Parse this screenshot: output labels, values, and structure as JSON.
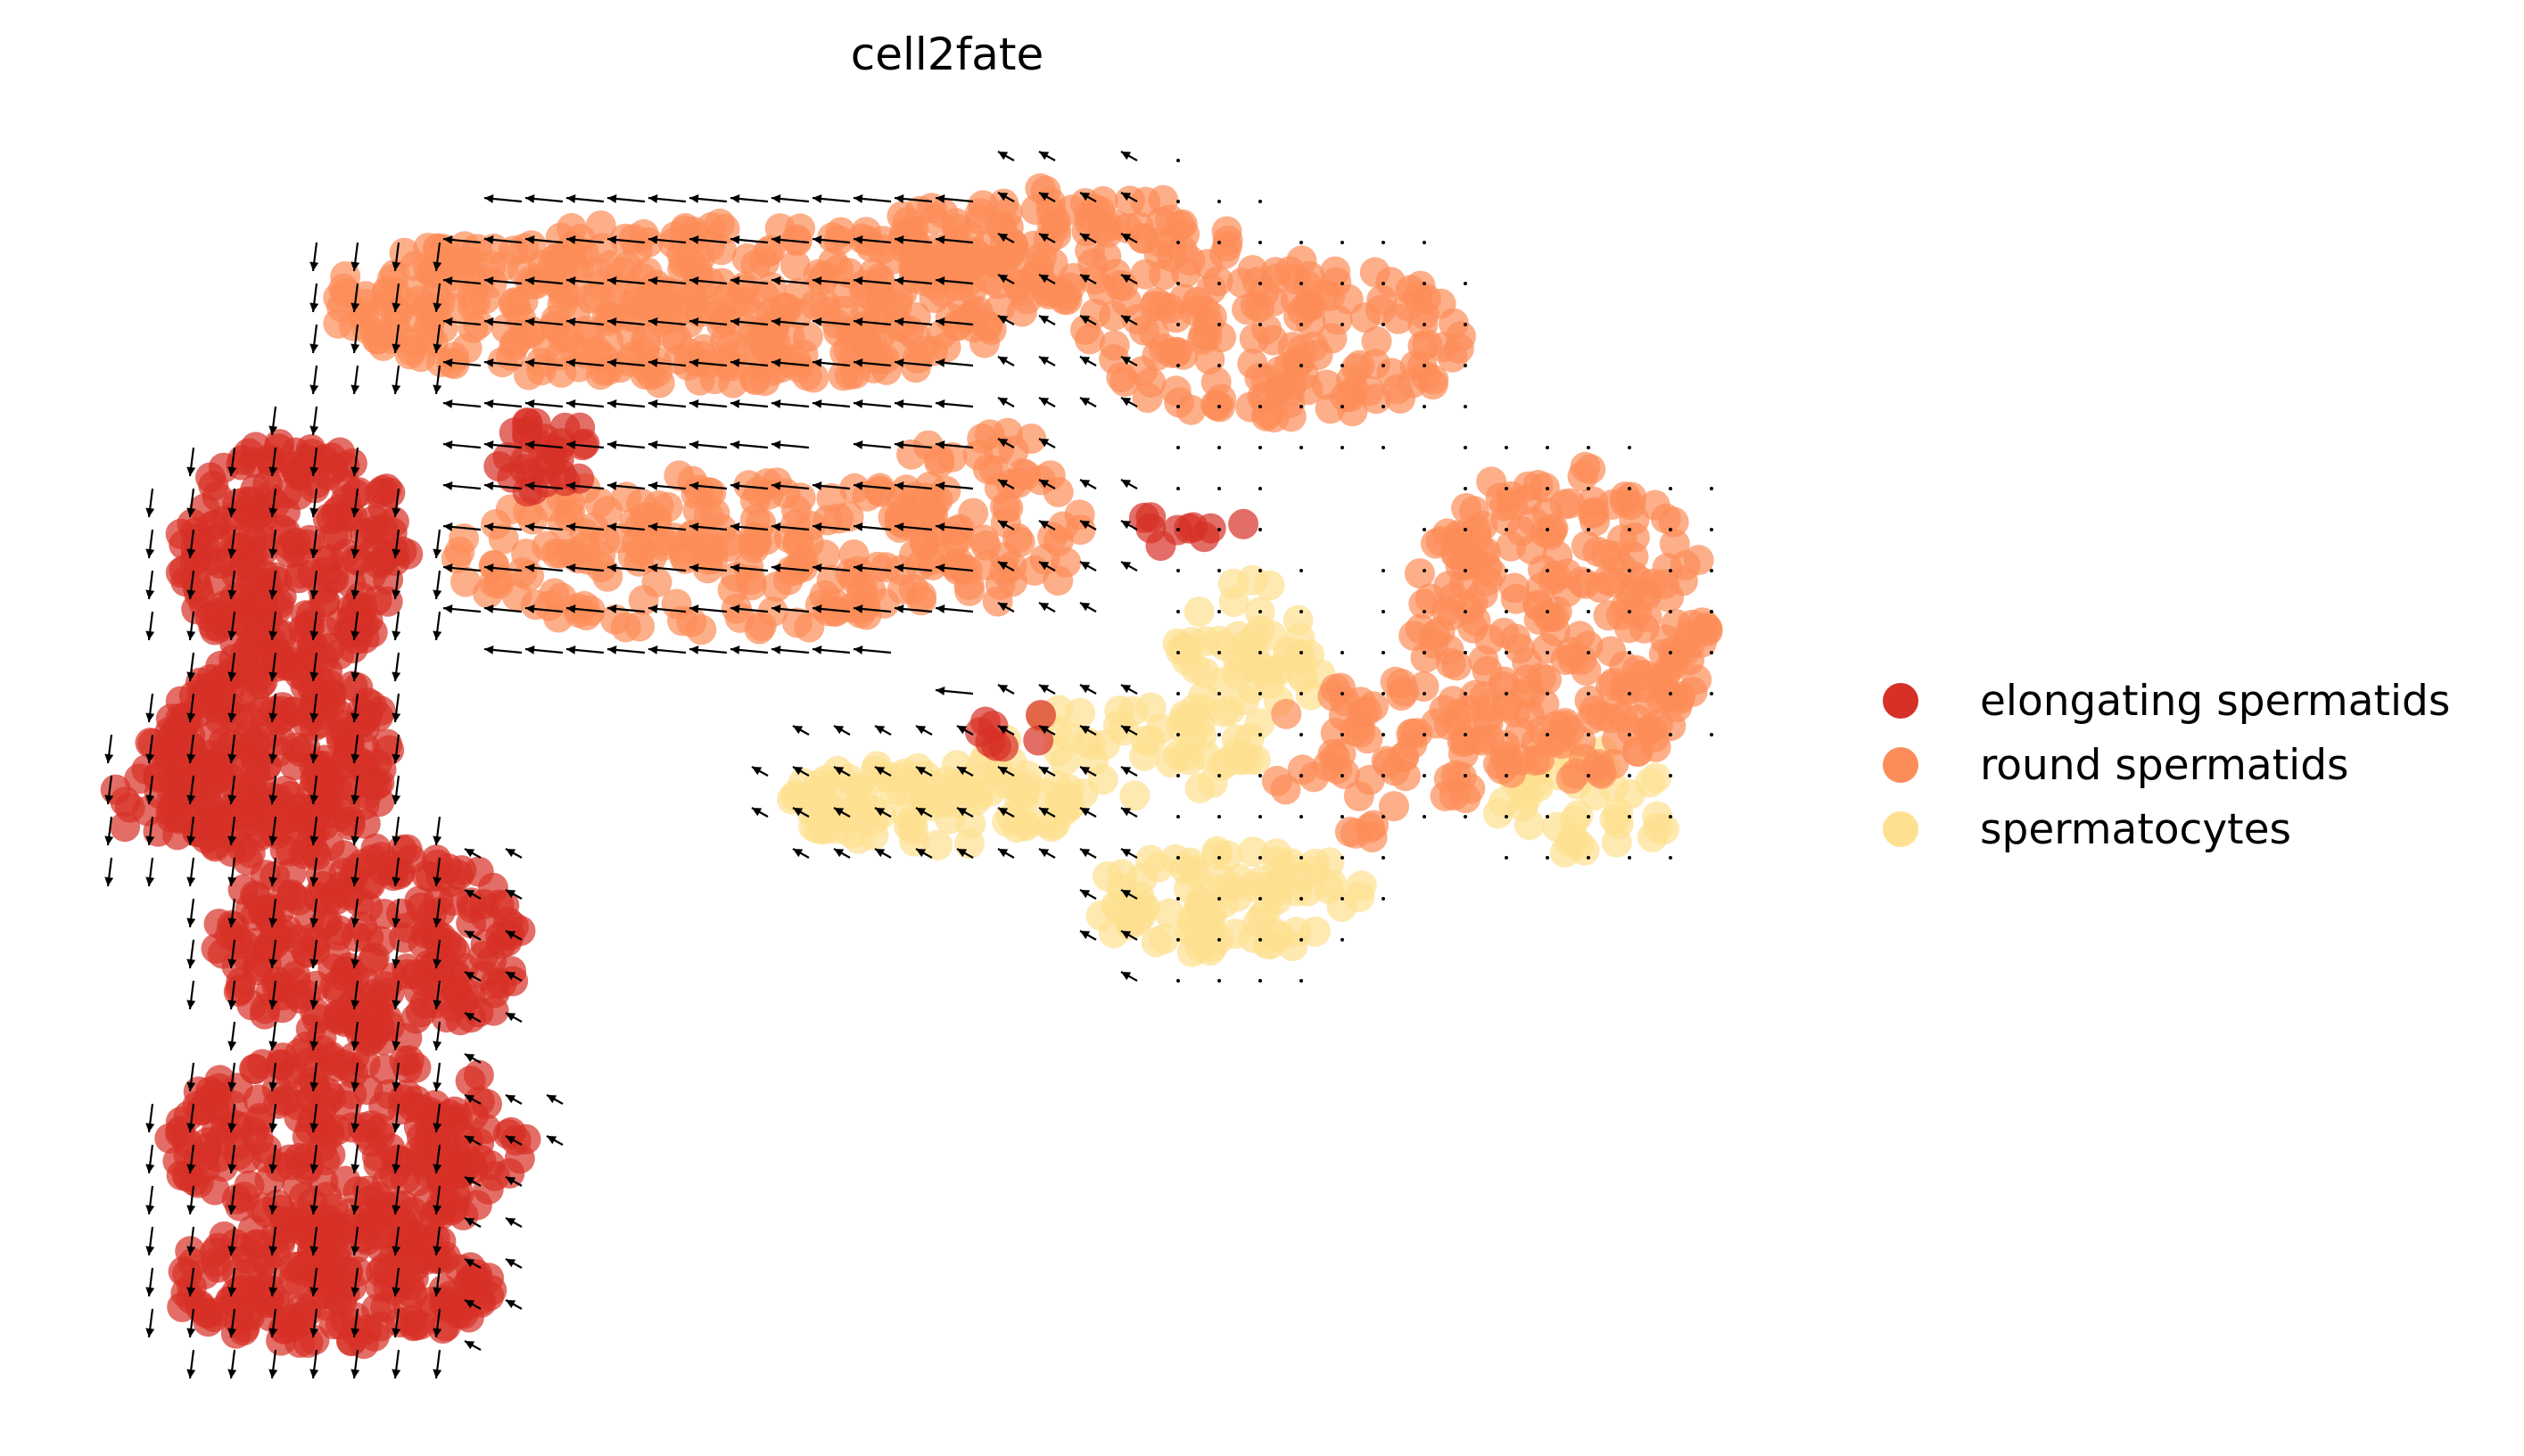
{
  "chart_data": {
    "type": "scatter",
    "title": "cell2fate",
    "xlabel": "",
    "ylabel": "",
    "axes_visible": false,
    "grid": false,
    "legend_position": "right",
    "overlay": "velocity stream arrows (quiver grid)",
    "series": [
      {
        "name": "elongating spermatids",
        "color": "#d73027",
        "regions": [
          {
            "cx": 330,
            "cy": 620,
            "rx": 130,
            "ry": 130,
            "n": 220
          },
          {
            "cx": 310,
            "cy": 850,
            "rx": 130,
            "ry": 120,
            "n": 260
          },
          {
            "cx": 420,
            "cy": 1060,
            "rx": 180,
            "ry": 110,
            "n": 240
          },
          {
            "cx": 390,
            "cy": 1280,
            "rx": 200,
            "ry": 110,
            "n": 260
          },
          {
            "cx": 370,
            "cy": 1440,
            "rx": 190,
            "ry": 70,
            "n": 200
          },
          {
            "cx": 190,
            "cy": 890,
            "rx": 70,
            "ry": 60,
            "n": 45
          },
          {
            "cx": 610,
            "cy": 510,
            "rx": 55,
            "ry": 45,
            "n": 30
          },
          {
            "cx": 1320,
            "cy": 595,
            "rx": 80,
            "ry": 25,
            "n": 10
          },
          {
            "cx": 1140,
            "cy": 820,
            "rx": 50,
            "ry": 25,
            "n": 8
          }
        ]
      },
      {
        "name": "round spermatids",
        "color": "#fc8d59",
        "regions": [
          {
            "cx": 780,
            "cy": 340,
            "rx": 420,
            "ry": 90,
            "n": 420
          },
          {
            "cx": 1180,
            "cy": 270,
            "rx": 200,
            "ry": 60,
            "n": 120
          },
          {
            "cx": 1430,
            "cy": 380,
            "rx": 220,
            "ry": 90,
            "n": 150
          },
          {
            "cx": 1750,
            "cy": 700,
            "rx": 170,
            "ry": 180,
            "n": 260
          },
          {
            "cx": 800,
            "cy": 620,
            "rx": 300,
            "ry": 90,
            "n": 200
          },
          {
            "cx": 1100,
            "cy": 580,
            "rx": 120,
            "ry": 110,
            "n": 70
          },
          {
            "cx": 1540,
            "cy": 850,
            "rx": 120,
            "ry": 90,
            "n": 60
          }
        ]
      },
      {
        "name": "spermatocytes",
        "color": "#fee090",
        "regions": [
          {
            "cx": 1050,
            "cy": 900,
            "rx": 170,
            "ry": 50,
            "n": 90
          },
          {
            "cx": 1380,
            "cy": 1010,
            "rx": 170,
            "ry": 60,
            "n": 90
          },
          {
            "cx": 1400,
            "cy": 760,
            "rx": 90,
            "ry": 110,
            "n": 60
          },
          {
            "cx": 1250,
            "cy": 850,
            "rx": 150,
            "ry": 60,
            "n": 50
          },
          {
            "cx": 1780,
            "cy": 900,
            "rx": 110,
            "ry": 60,
            "n": 40
          }
        ]
      }
    ]
  }
}
